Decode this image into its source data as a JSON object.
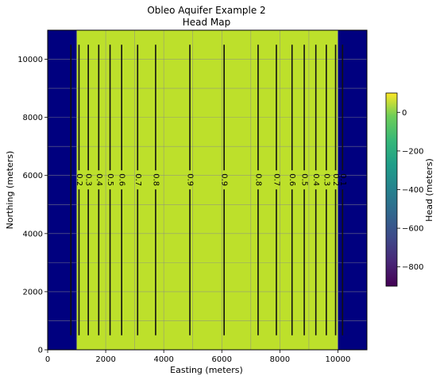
{
  "chart_data": {
    "type": "heatmap",
    "title": "Obleo Aquifer Example 2",
    "subtitle": "Head Map",
    "xlabel": "Easting (meters)",
    "ylabel": "Northing (meters)",
    "xlim": [
      0,
      11000
    ],
    "ylim": [
      0,
      11000
    ],
    "x_ticks": [
      0,
      2000,
      4000,
      6000,
      8000,
      10000
    ],
    "y_ticks": [
      0,
      2000,
      4000,
      6000,
      8000,
      10000
    ],
    "grid": true,
    "field": {
      "active_x_range": [
        1000,
        10000
      ],
      "active_value": 0.5,
      "inactive_value": -900,
      "active_color": "#bde02b",
      "inactive_color": "#00007f"
    },
    "contour_line_y_range": [
      500,
      10500
    ],
    "contour_label_y": 5850,
    "contours": [
      {
        "x": 800,
        "label": ""
      },
      {
        "x": 1080,
        "label": "0.2"
      },
      {
        "x": 1400,
        "label": "0.3"
      },
      {
        "x": 1760,
        "label": "0.4"
      },
      {
        "x": 2150,
        "label": "0.5"
      },
      {
        "x": 2550,
        "label": "0.6"
      },
      {
        "x": 3100,
        "label": "0.7"
      },
      {
        "x": 3720,
        "label": "0.8"
      },
      {
        "x": 4900,
        "label": "0.9"
      },
      {
        "x": 6080,
        "label": "0.9"
      },
      {
        "x": 7250,
        "label": "0.8"
      },
      {
        "x": 7880,
        "label": "0.7"
      },
      {
        "x": 8420,
        "label": "0.6"
      },
      {
        "x": 8840,
        "label": "0.5"
      },
      {
        "x": 9240,
        "label": "0.4"
      },
      {
        "x": 9600,
        "label": "0.3"
      },
      {
        "x": 9920,
        "label": "0.2"
      },
      {
        "x": 10160,
        "label": "0.1"
      }
    ],
    "colorbar": {
      "label": "Head (meters)",
      "range": [
        -900,
        100
      ],
      "ticks": [
        0,
        -200,
        -400,
        -600,
        -800
      ],
      "tick_labels": [
        "0",
        "−200",
        "−400",
        "−600",
        "−800"
      ],
      "colormap": "viridis"
    }
  }
}
